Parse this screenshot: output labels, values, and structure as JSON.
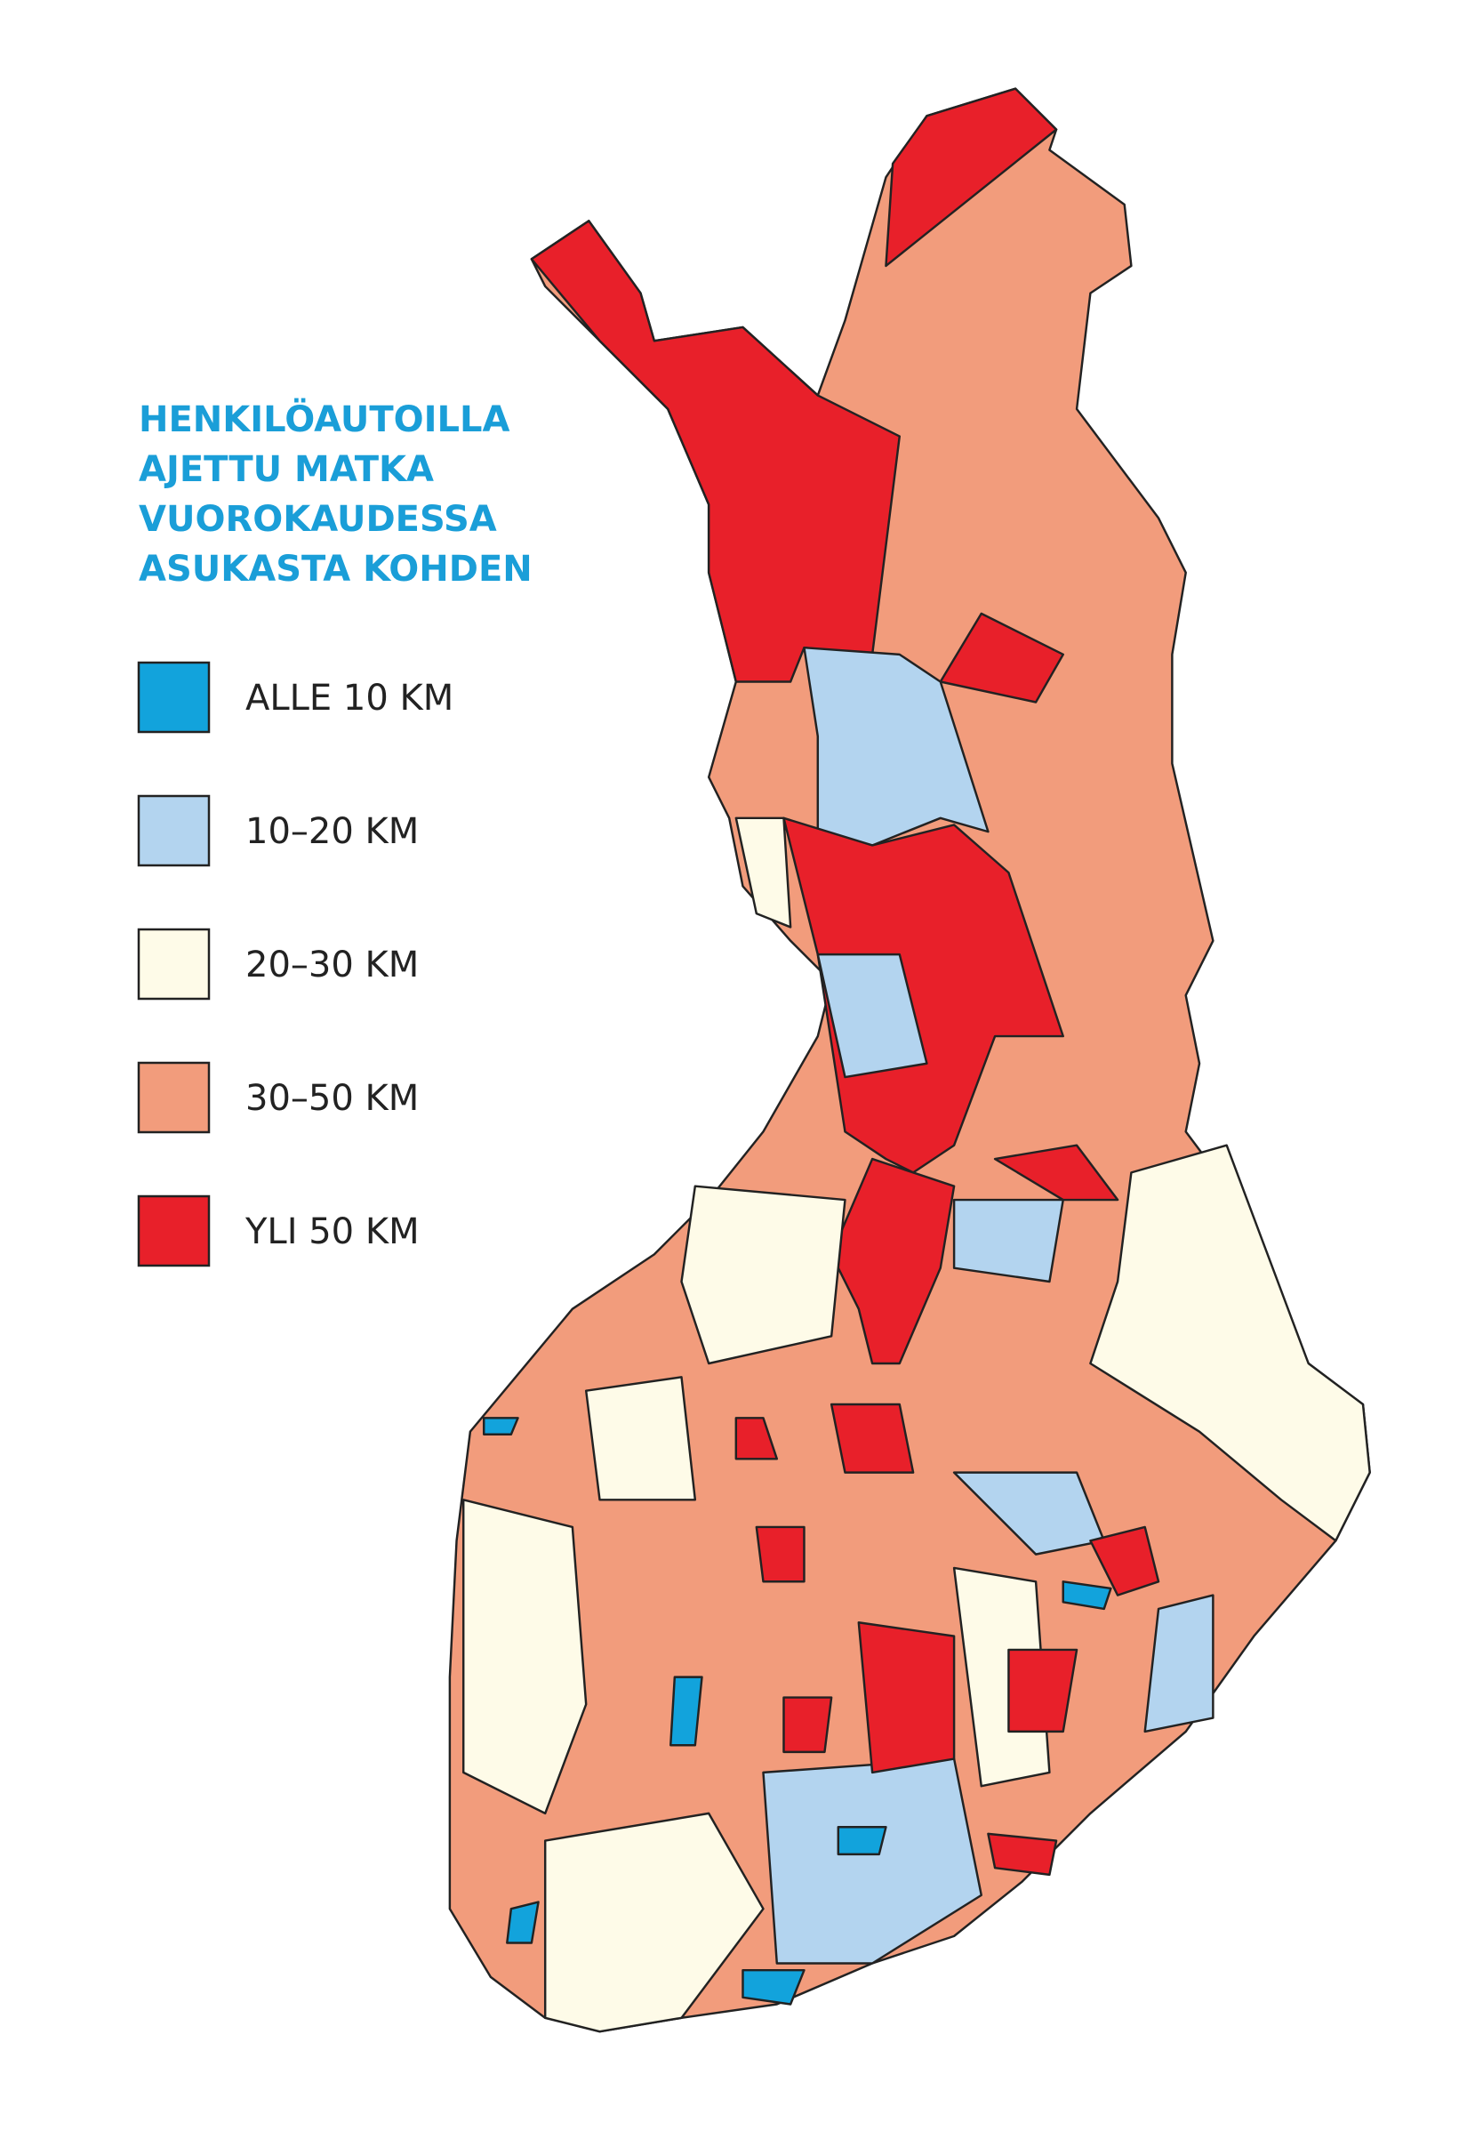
{
  "title_lines": [
    "HENKILÖAUTOILLA",
    "AJETTU MATKA",
    "VUOROKAUDESSA",
    "ASUKASTA KOHDEN"
  ],
  "title_color": "#1a9ed8",
  "legend": {
    "items": [
      {
        "label": "ALLE 10 KM",
        "color": "#12a3dc"
      },
      {
        "label": "10–20 KM",
        "color": "#b3d4ef"
      },
      {
        "label": "20–30 KM",
        "color": "#fefbe8"
      },
      {
        "label": "30–50 KM",
        "color": "#f29c7c"
      },
      {
        "label": "YLI 50 KM",
        "color": "#e8202a"
      }
    ]
  }
}
